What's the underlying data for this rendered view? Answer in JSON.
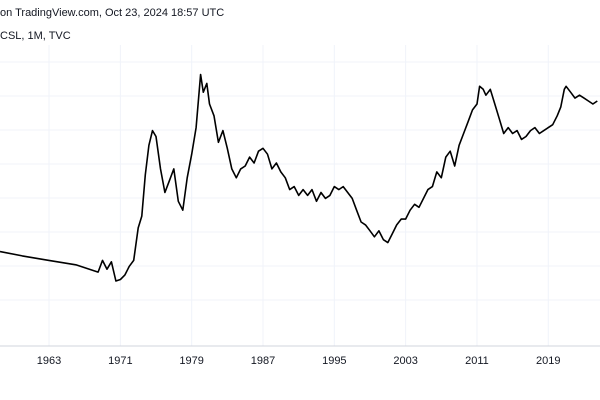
{
  "header": {
    "source_text": "on TradingView.com, Oct 23, 2024 18:57 UTC",
    "symbol_text": "CSL, 1M, TVC"
  },
  "chart_data": {
    "type": "line",
    "title": "",
    "xlabel": "",
    "ylabel": "",
    "x_tick_labels": [
      "1963",
      "1971",
      "1979",
      "1987",
      "1995",
      "2003",
      "2011",
      "2019"
    ],
    "x_tick_years": [
      1963,
      1971,
      1979,
      1987,
      1995,
      2003,
      2011,
      2019
    ],
    "xlim": [
      1957.5,
      2024.8
    ],
    "ylim": [
      0,
      100
    ],
    "grid": true,
    "legend": "none",
    "line_color": "#000000",
    "grid_color": "#f0f3fa",
    "series": [
      {
        "x": [
          1957.5,
          1960,
          1963,
          1966,
          1968.5,
          1969,
          1969.5,
          1970,
          1970.5,
          1971,
          1971.5,
          1972,
          1972.5,
          1973,
          1973.4,
          1973.8,
          1974.2,
          1974.6,
          1975,
          1975.5,
          1976,
          1976.5,
          1977,
          1977.5,
          1978,
          1978.5,
          1979,
          1979.5,
          1980,
          1980.3,
          1980.7,
          1981,
          1981.5,
          1982,
          1982.5,
          1983,
          1983.5,
          1984,
          1984.5,
          1985,
          1985.5,
          1986,
          1986.5,
          1987,
          1987.5,
          1988,
          1988.5,
          1989,
          1989.5,
          1990,
          1990.5,
          1991,
          1991.5,
          1992,
          1992.5,
          1993,
          1993.5,
          1994,
          1994.5,
          1995,
          1995.5,
          1996,
          1996.5,
          1997,
          1997.5,
          1998,
          1998.5,
          1999,
          1999.5,
          2000,
          2000.5,
          2001,
          2001.5,
          2002,
          2002.5,
          2003,
          2003.5,
          2004,
          2004.5,
          2005,
          2005.5,
          2006,
          2006.5,
          2007,
          2007.5,
          2008,
          2008.5,
          2009,
          2009.5,
          2010,
          2010.5,
          2011,
          2011.3,
          2011.7,
          2012,
          2012.5,
          2013,
          2013.5,
          2014,
          2014.5,
          2015,
          2015.5,
          2016,
          2016.5,
          2017,
          2017.5,
          2018,
          2018.5,
          2019,
          2019.5,
          2020,
          2020.4,
          2020.8,
          2021,
          2021.5,
          2022,
          2022.5,
          2023,
          2023.5,
          2024,
          2024.5
        ],
        "y": [
          30,
          28.5,
          27,
          25.5,
          23,
          27,
          24,
          26.5,
          20,
          20.5,
          22,
          25,
          27,
          38,
          42,
          56,
          66,
          71,
          69,
          58,
          50,
          54,
          58,
          47,
          44,
          55,
          63,
          72,
          90,
          84,
          87,
          80,
          76,
          67,
          71,
          65,
          58,
          55,
          58,
          59,
          62,
          60,
          64,
          65,
          63,
          58,
          60,
          57,
          55,
          51,
          52,
          49,
          51,
          49,
          51,
          47,
          50,
          48,
          49,
          52,
          51,
          52,
          50,
          48,
          44,
          40,
          39,
          37,
          35,
          37,
          34,
          33,
          36,
          39,
          41,
          41,
          44,
          46,
          45,
          48,
          51,
          52,
          57,
          55,
          62,
          64,
          59,
          66,
          70,
          74,
          78,
          80,
          86,
          85,
          83,
          85,
          80,
          75,
          70,
          72,
          70,
          71,
          68,
          69,
          71,
          72,
          70,
          71,
          72,
          73,
          76,
          79,
          85,
          86,
          84,
          82,
          83,
          82,
          81,
          80,
          81
        ]
      }
    ]
  }
}
